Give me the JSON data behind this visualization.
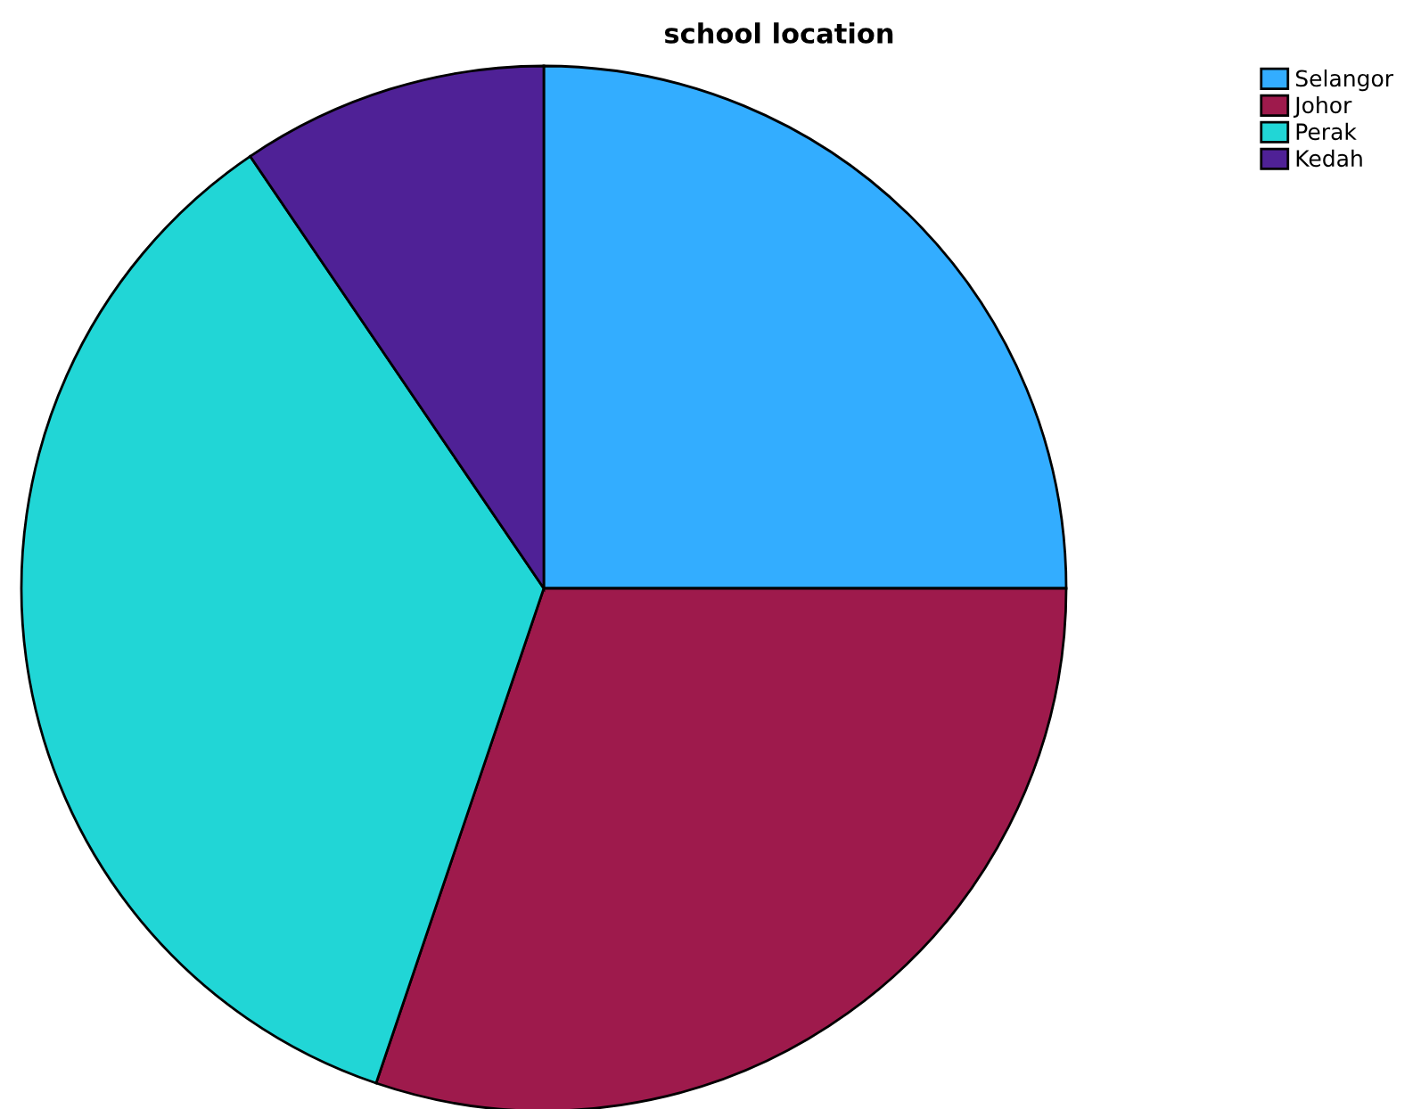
{
  "chart_data": {
    "type": "pie",
    "title": "school location",
    "categories": [
      "Selangor",
      "Johor",
      "Perak",
      "Kedah"
    ],
    "values": [
      25,
      30.2,
      35.3,
      9.5
    ],
    "colors": [
      "#33adff",
      "#9e1a4c",
      "#21d6d6",
      "#4f2196"
    ],
    "legend": "top right"
  }
}
